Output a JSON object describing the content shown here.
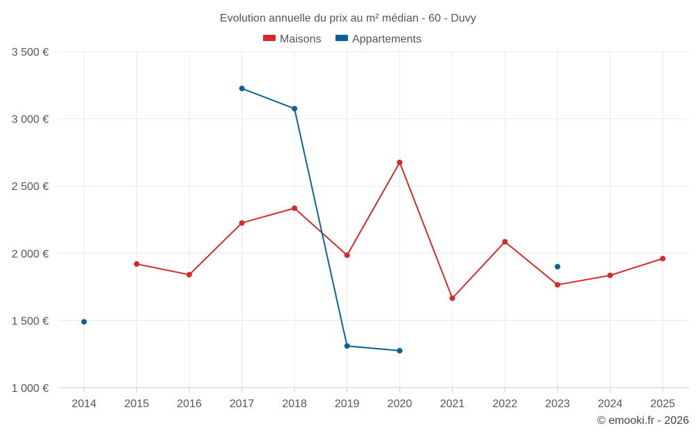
{
  "chart_data": {
    "type": "line",
    "title": "Evolution annuelle du prix au m² médian - 60 - Duvy",
    "xlabel": "",
    "ylabel": "",
    "categories": [
      "2014",
      "2015",
      "2016",
      "2017",
      "2018",
      "2019",
      "2020",
      "2021",
      "2022",
      "2023",
      "2024",
      "2025"
    ],
    "ylim": [
      1000,
      3500
    ],
    "y_ticks": [
      1000,
      1500,
      2000,
      2500,
      3000,
      3500
    ],
    "y_tick_labels": [
      "1 000 €",
      "1 500 €",
      "2 000 €",
      "2 500 €",
      "3 000 €",
      "3 500 €"
    ],
    "grid": true,
    "legend_position": "top-center",
    "series": [
      {
        "name": "Maisons",
        "color": "#d42a2a",
        "values": [
          null,
          1920,
          1840,
          2225,
          2335,
          1985,
          2675,
          1665,
          2085,
          1765,
          1835,
          1960
        ]
      },
      {
        "name": "Appartements",
        "color": "#0e6197",
        "values": [
          1490,
          null,
          null,
          3225,
          3075,
          1310,
          1275,
          null,
          null,
          1900,
          null,
          null
        ]
      }
    ],
    "credit": "© emooki.fr - 2026"
  }
}
